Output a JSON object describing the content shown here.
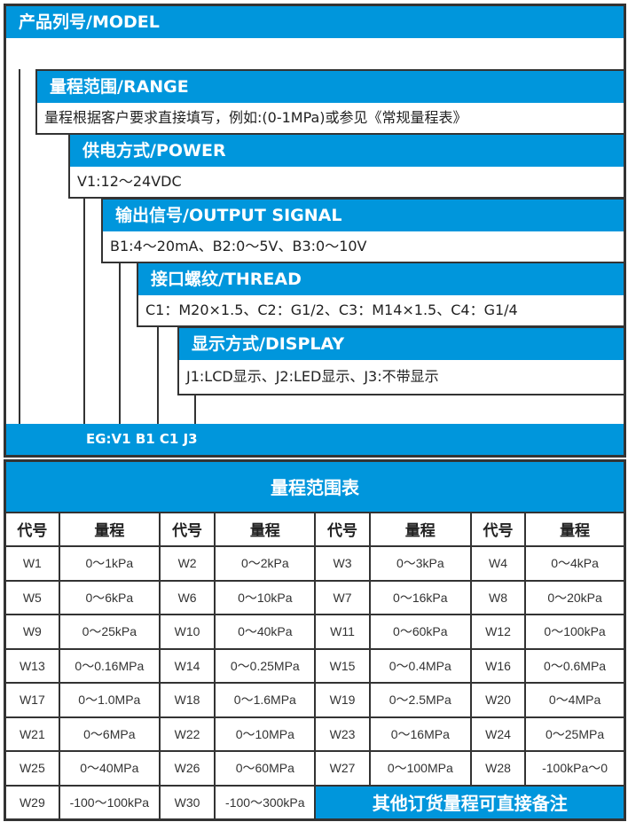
{
  "model": {
    "header": "产品列号/MODEL"
  },
  "sections": [
    {
      "header": "量程范围/RANGE",
      "text": "量程根据客户要求直接填写，例如:(0-1MPa)或参见《常规量程表》"
    },
    {
      "header": "供电方式/POWER",
      "text": "V1:12～24VDC"
    },
    {
      "header": "输出信号/OUTPUT SIGNAL",
      "text": "B1:4～20mA、B2:0～5V、B3:0～10V"
    },
    {
      "header": "接口螺纹/THREAD",
      "text": "C1：M20×1.5、C2：G1/2、C3：M14×1.5、C4：G1/4"
    },
    {
      "header": "显示方式/DISPLAY",
      "text": "J1:LCD显示、J2:LED显示、J3:不带显示"
    }
  ],
  "example": "EG:V1 B1 C1 J3",
  "range_table": {
    "title": "量程范围表",
    "headers": [
      "代号",
      "量程",
      "代号",
      "量程",
      "代号",
      "量程",
      "代号",
      "量程"
    ],
    "rows": [
      [
        "W1",
        "0～1kPa",
        "W2",
        "0～2kPa",
        "W3",
        "0～3kPa",
        "W4",
        "0～4kPa"
      ],
      [
        "W5",
        "0～6kPa",
        "W6",
        "0～10kPa",
        "W7",
        "0～16kPa",
        "W8",
        "0～20kPa"
      ],
      [
        "W9",
        "0～25kPa",
        "W10",
        "0～40kPa",
        "W11",
        "0～60kPa",
        "W12",
        "0～100kPa"
      ],
      [
        "W13",
        "0～0.16MPa",
        "W14",
        "0～0.25MPa",
        "W15",
        "0～0.4MPa",
        "W16",
        "0～0.6MPa"
      ],
      [
        "W17",
        "0～1.0MPa",
        "W18",
        "0～1.6MPa",
        "W19",
        "0～2.5MPa",
        "W20",
        "0～4MPa"
      ],
      [
        "W21",
        "0～6MPa",
        "W22",
        "0～10MPa",
        "W23",
        "0～16MPa",
        "W24",
        "0～25MPa"
      ],
      [
        "W25",
        "0～40MPa",
        "W26",
        "0～60MPa",
        "W27",
        "0～100MPa",
        "W28",
        "-100kPa～0"
      ]
    ],
    "last_row": [
      "W29",
      "-100～100kPa",
      "W30",
      "-100～300kPa"
    ],
    "note": "其他订货量程可直接备注"
  },
  "colors": {
    "accent": "#0096dc",
    "border": "#333333"
  }
}
